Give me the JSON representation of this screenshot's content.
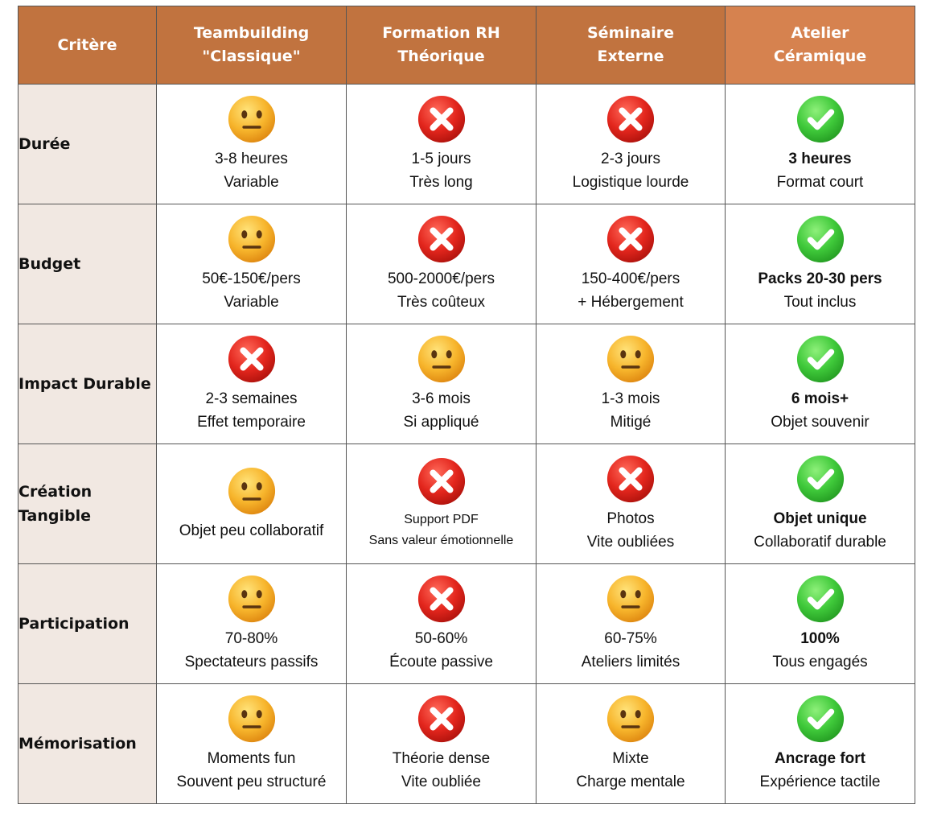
{
  "header": {
    "criterion": "Critère",
    "options": [
      {
        "line1": "Teambuilding",
        "line2": "\"Classique\""
      },
      {
        "line1": "Formation RH",
        "line2": "Théorique"
      },
      {
        "line1": "Séminaire",
        "line2": "Externe"
      },
      {
        "line1": "Atelier",
        "line2": "Céramique"
      }
    ]
  },
  "colors": {
    "header_bg": "#c1733f",
    "header_highlight_bg": "#d6824f",
    "criterion_bg": "#f1e8e2"
  },
  "rows": [
    {
      "criterion": "Durée",
      "cells": [
        {
          "icon": "neutral-face-icon",
          "line1": "3-8 heures",
          "line2": "Variable"
        },
        {
          "icon": "red-cross-icon",
          "line1": "1-5 jours",
          "line2": "Très long"
        },
        {
          "icon": "red-cross-icon",
          "line1": "2-3 jours",
          "line2": "Logistique lourde"
        },
        {
          "icon": "green-check-icon",
          "line1": "3 heures",
          "line2": "Format court"
        }
      ]
    },
    {
      "criterion": "Budget",
      "cells": [
        {
          "icon": "neutral-face-icon",
          "line1": "50€-150€/pers",
          "line2": "Variable"
        },
        {
          "icon": "red-cross-icon",
          "line1": "500-2000€/pers",
          "line2": "Très coûteux"
        },
        {
          "icon": "red-cross-icon",
          "line1": "150-400€/pers",
          "line2": "+ Hébergement"
        },
        {
          "icon": "green-check-icon",
          "line1": "Packs 20-30 pers",
          "line2": "Tout inclus"
        }
      ]
    },
    {
      "criterion": "Impact Durable",
      "cells": [
        {
          "icon": "red-cross-icon",
          "line1": "2-3 semaines",
          "line2": "Effet temporaire"
        },
        {
          "icon": "neutral-face-icon",
          "line1": "3-6 mois",
          "line2": "Si appliqué"
        },
        {
          "icon": "neutral-face-icon",
          "line1": "1-3 mois",
          "line2": "Mitigé"
        },
        {
          "icon": "green-check-icon",
          "line1": "6 mois+",
          "line2": "Objet souvenir"
        }
      ]
    },
    {
      "criterion": "Création Tangible",
      "cells": [
        {
          "icon": "neutral-face-icon",
          "line1": "Objet peu collaboratif",
          "line2": ""
        },
        {
          "icon": "red-cross-icon",
          "line1": "Support PDF",
          "line2": "Sans valeur émotionnelle"
        },
        {
          "icon": "red-cross-icon",
          "line1": "Photos",
          "line2": "Vite oubliées"
        },
        {
          "icon": "green-check-icon",
          "line1": "Objet unique",
          "line2": "Collaboratif durable"
        }
      ]
    },
    {
      "criterion": "Participation",
      "cells": [
        {
          "icon": "neutral-face-icon",
          "line1": "70-80%",
          "line2": "Spectateurs passifs"
        },
        {
          "icon": "red-cross-icon",
          "line1": "50-60%",
          "line2": "Écoute passive"
        },
        {
          "icon": "neutral-face-icon",
          "line1": "60-75%",
          "line2": "Ateliers limités"
        },
        {
          "icon": "green-check-icon",
          "line1": "100%",
          "line2": "Tous engagés"
        }
      ]
    },
    {
      "criterion": "Mémorisation",
      "cells": [
        {
          "icon": "neutral-face-icon",
          "line1": "Moments fun",
          "line2": "Souvent peu structuré"
        },
        {
          "icon": "red-cross-icon",
          "line1": "Théorie dense",
          "line2": "Vite oubliée"
        },
        {
          "icon": "neutral-face-icon",
          "line1": "Mixte",
          "line2": "Charge mentale"
        },
        {
          "icon": "green-check-icon",
          "line1": "Ancrage fort",
          "line2": "Expérience tactile"
        }
      ]
    }
  ]
}
